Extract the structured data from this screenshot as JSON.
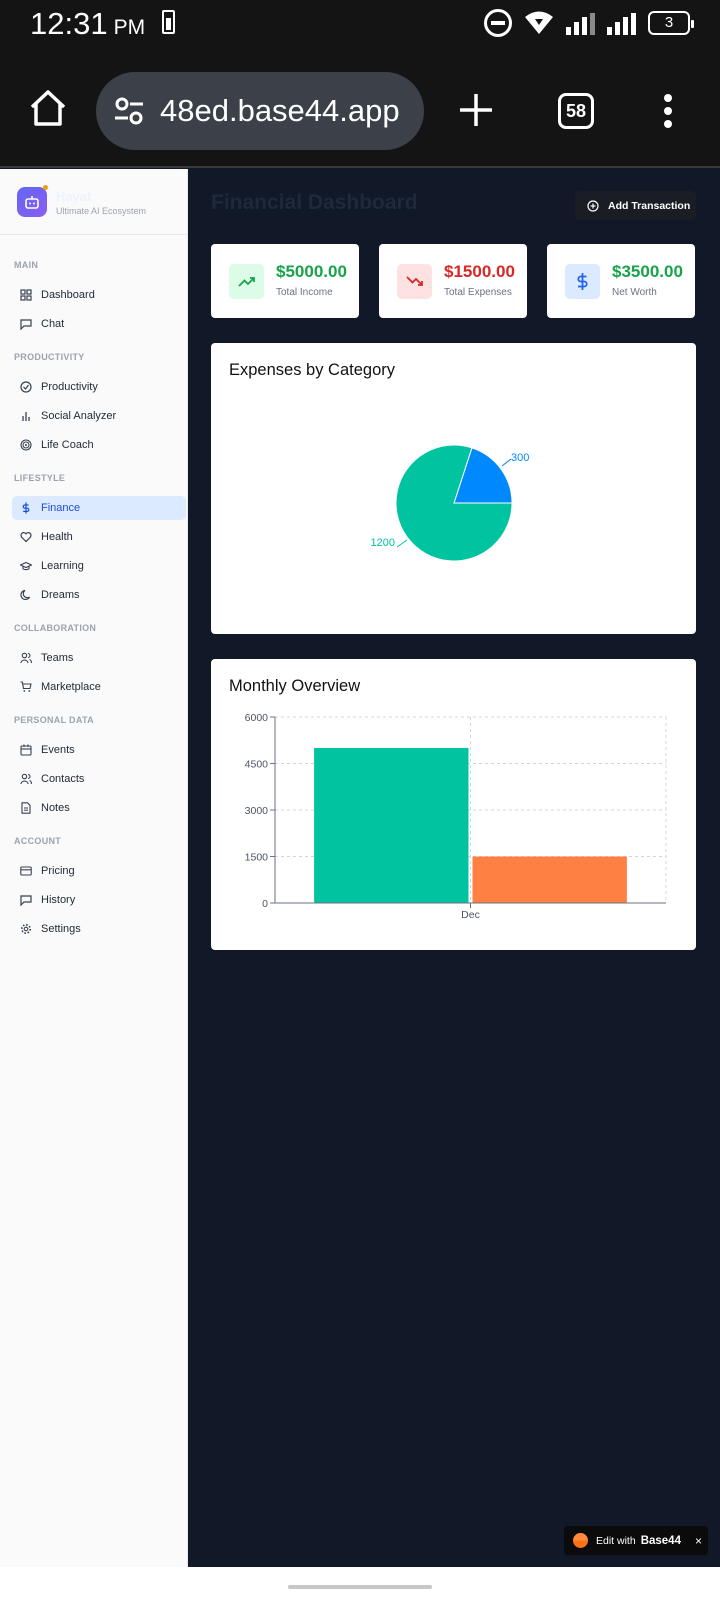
{
  "status_bar": {
    "time": "12:31",
    "ampm": "PM",
    "battery_level": "3"
  },
  "browser": {
    "url": "48ed.base44.app",
    "tab_count": "58"
  },
  "sidebar": {
    "brand_name": "Hayat",
    "brand_tagline": "Ultimate AI Ecosystem",
    "sections": [
      {
        "title": "MAIN",
        "items": [
          {
            "label": "Dashboard",
            "icon": "grid-icon"
          },
          {
            "label": "Chat",
            "icon": "message-icon"
          }
        ]
      },
      {
        "title": "PRODUCTIVITY",
        "items": [
          {
            "label": "Productivity",
            "icon": "check-circle-icon"
          },
          {
            "label": "Social Analyzer",
            "icon": "bar-chart-icon"
          },
          {
            "label": "Life Coach",
            "icon": "target-icon"
          }
        ]
      },
      {
        "title": "LIFESTYLE",
        "items": [
          {
            "label": "Finance",
            "icon": "dollar-icon",
            "active": true
          },
          {
            "label": "Health",
            "icon": "heart-icon"
          },
          {
            "label": "Learning",
            "icon": "graduation-cap-icon"
          },
          {
            "label": "Dreams",
            "icon": "moon-icon"
          }
        ]
      },
      {
        "title": "COLLABORATION",
        "items": [
          {
            "label": "Teams",
            "icon": "users-icon"
          },
          {
            "label": "Marketplace",
            "icon": "cart-icon"
          }
        ]
      },
      {
        "title": "PERSONAL DATA",
        "items": [
          {
            "label": "Events",
            "icon": "calendar-icon"
          },
          {
            "label": "Contacts",
            "icon": "contacts-icon"
          },
          {
            "label": "Notes",
            "icon": "document-icon"
          }
        ]
      },
      {
        "title": "ACCOUNT",
        "items": [
          {
            "label": "Pricing",
            "icon": "credit-card-icon"
          },
          {
            "label": "History",
            "icon": "history-icon"
          },
          {
            "label": "Settings",
            "icon": "gear-icon"
          }
        ]
      }
    ]
  },
  "header": {
    "title": "Financial Dashboard",
    "add_label": "Add Transaction"
  },
  "stats": [
    {
      "value": "$5000.00",
      "label": "Total Income",
      "color": "#16a34a",
      "bg": "#dcfce7",
      "icon": "trending-up-icon"
    },
    {
      "value": "$1500.00",
      "label": "Total Expenses",
      "color": "#dc2626",
      "bg": "#fee2e2",
      "icon": "trending-down-icon"
    },
    {
      "value": "$3500.00",
      "label": "Net Worth",
      "color": "#16a34a",
      "bg": "#dbeafe",
      "icon": "dollar-icon"
    }
  ],
  "pie_title": "Expenses by Category",
  "bar_title": "Monthly Overview",
  "chart_data": [
    {
      "type": "pie",
      "title": "Expenses by Category",
      "values": [
        300,
        1200
      ],
      "labels": [
        "300",
        "1200"
      ],
      "colors": [
        "#0088fe",
        "#00c49f"
      ]
    },
    {
      "type": "bar",
      "title": "Monthly Overview",
      "categories": [
        "Dec"
      ],
      "series": [
        {
          "values": [
            5000
          ],
          "color": "#00c49f"
        },
        {
          "values": [
            1500
          ],
          "color": "#ff8042"
        }
      ],
      "ylim": [
        0,
        6000
      ],
      "yticks": [
        "0",
        "1500",
        "3000",
        "4500",
        "6000"
      ],
      "grid": true
    }
  ],
  "edit_badge": {
    "label": "Edit with",
    "brand": "Base44",
    "close": "×"
  }
}
